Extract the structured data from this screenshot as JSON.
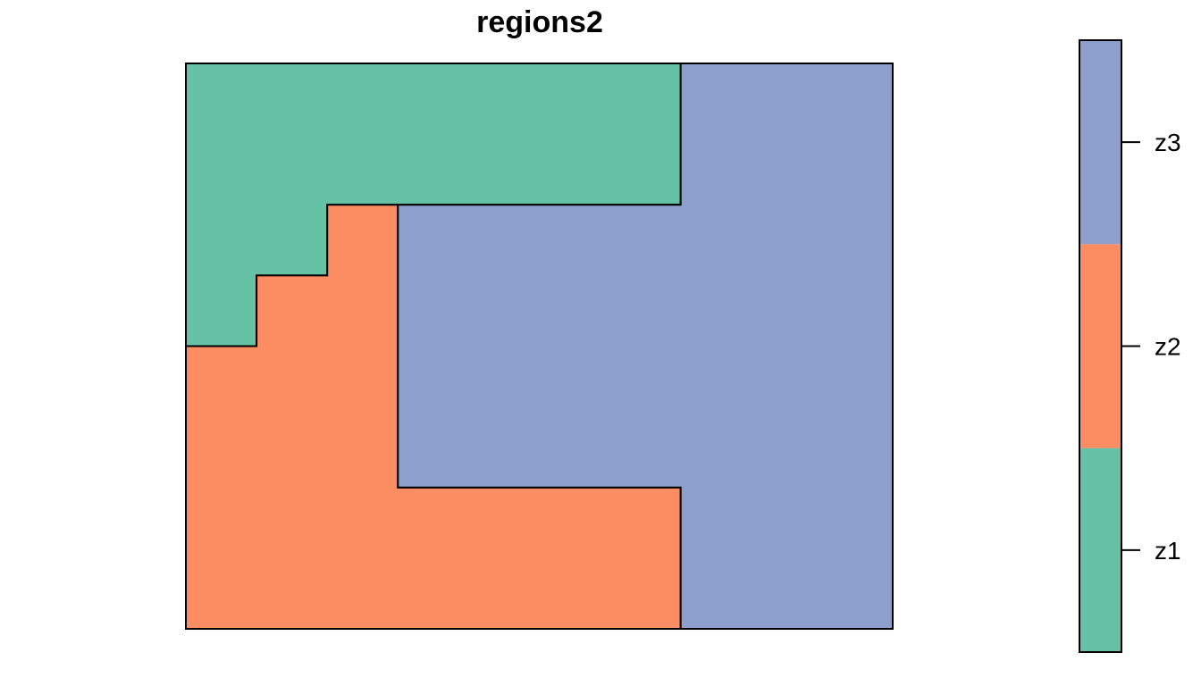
{
  "chart_data": {
    "type": "heatmap",
    "title": "regions2",
    "xlabel": "",
    "ylabel": "",
    "grid": false,
    "axes_shown": false,
    "legend_placement": "right",
    "grid_size": {
      "cols": 10,
      "rows": 8
    },
    "x_range": [
      0,
      10
    ],
    "y_range": [
      0,
      8
    ],
    "categories": [
      "z1",
      "z2",
      "z3"
    ],
    "colors": {
      "z1": "#66c2a5",
      "z2": "#fc8d62",
      "z3": "#8da0cb"
    },
    "regions": [
      {
        "name": "z1",
        "outline": [
          [
            0,
            8
          ],
          [
            7,
            8
          ],
          [
            7,
            6
          ],
          [
            2,
            6
          ],
          [
            2,
            5
          ],
          [
            1,
            5
          ],
          [
            1,
            4
          ],
          [
            0,
            4
          ]
        ]
      },
      {
        "name": "z2",
        "outline": [
          [
            0,
            4
          ],
          [
            1,
            4
          ],
          [
            1,
            5
          ],
          [
            2,
            5
          ],
          [
            2,
            6
          ],
          [
            3,
            6
          ],
          [
            3,
            2
          ],
          [
            7,
            2
          ],
          [
            7,
            0
          ],
          [
            0,
            0
          ]
        ]
      },
      {
        "name": "z3",
        "outline": [
          [
            7,
            8
          ],
          [
            10,
            8
          ],
          [
            10,
            0
          ],
          [
            7,
            0
          ],
          [
            7,
            2
          ],
          [
            3,
            2
          ],
          [
            3,
            6
          ],
          [
            7,
            6
          ]
        ]
      }
    ]
  }
}
